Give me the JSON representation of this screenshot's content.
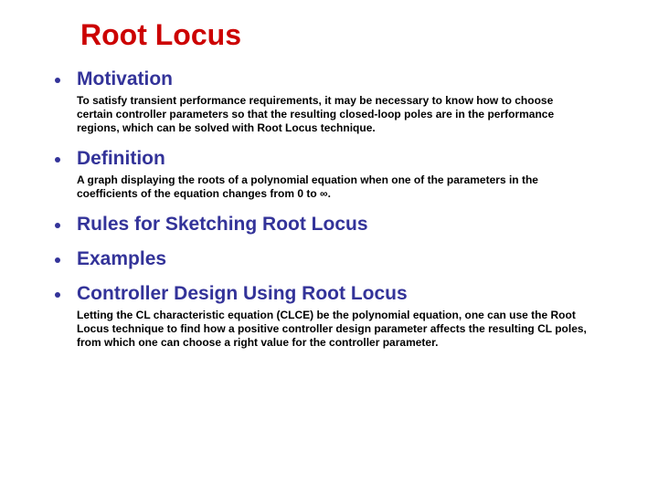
{
  "slide": {
    "title": "Root Locus",
    "title_color": "#cc0000",
    "heading_color": "#333399",
    "bullet_color": "#333399",
    "body_color": "#000000",
    "items": [
      {
        "heading": "Motivation",
        "body": "To satisfy transient performance requirements, it may be necessary to know how to choose certain controller parameters so that the resulting closed-loop poles are in the performance regions, which can be solved with Root Locus technique."
      },
      {
        "heading": "Definition",
        "body": "A graph displaying the roots of a polynomial equation when one of the parameters in the coefficients of the equation changes from 0 to ∞."
      },
      {
        "heading": "Rules for Sketching Root Locus",
        "body": ""
      },
      {
        "heading": "Examples",
        "body": ""
      },
      {
        "heading": "Controller Design Using Root Locus",
        "body": "Letting the CL characteristic equation (CLCE) be the polynomial equation, one can use the Root Locus technique to find how a positive controller design parameter affects the resulting CL poles, from which one can choose a right value for the controller parameter."
      }
    ]
  }
}
